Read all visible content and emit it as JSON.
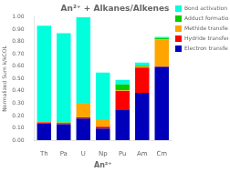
{
  "chart_data": {
    "type": "bar",
    "title": "An²⁺ + Alkanes/Alkenes",
    "xlabel": "An²⁺",
    "ylabel": "Normalized Sum k/kCOL",
    "categories": [
      "Th",
      "Pa",
      "U",
      "Np",
      "Pu",
      "Am",
      "Cm"
    ],
    "series": [
      {
        "name": "Electron transfer",
        "color": "#0000BB",
        "values": [
          0.135,
          0.13,
          0.175,
          0.095,
          0.245,
          0.385,
          0.595
        ]
      },
      {
        "name": "Hydride transfer",
        "color": "#FF0000",
        "values": [
          0.01,
          0.008,
          0.01,
          0.015,
          0.155,
          0.205,
          0.005
        ]
      },
      {
        "name": "Methide transfer",
        "color": "#FFA500",
        "values": [
          0.005,
          0.005,
          0.115,
          0.055,
          0.005,
          0.01,
          0.22
        ]
      },
      {
        "name": "Adduct formation",
        "color": "#00CC00",
        "values": [
          0.003,
          0.004,
          0.003,
          0.003,
          0.048,
          0.004,
          0.008
        ]
      },
      {
        "name": "Bond activation",
        "color": "#00FFDD",
        "values": [
          0.777,
          0.723,
          0.697,
          0.382,
          0.037,
          0.026,
          0.012
        ]
      }
    ],
    "stacked": true,
    "ylim": [
      0.0,
      1.0
    ],
    "yticks": [
      {
        "value": 0.0,
        "label": "0.00"
      },
      {
        "value": 0.1,
        "label": "0.10"
      },
      {
        "value": 0.2,
        "label": "0.20"
      },
      {
        "value": 0.3,
        "label": "0.30"
      },
      {
        "value": 0.4,
        "label": "0.40"
      },
      {
        "value": 0.5,
        "label": "0.50"
      },
      {
        "value": 0.6,
        "label": "0.60"
      },
      {
        "value": 0.7,
        "label": "0.70"
      },
      {
        "value": 0.8,
        "label": "0.80"
      },
      {
        "value": 0.9,
        "label": "0.90"
      },
      {
        "value": 1.0,
        "label": "1.00"
      }
    ],
    "grid": false,
    "legend": "upper right"
  }
}
